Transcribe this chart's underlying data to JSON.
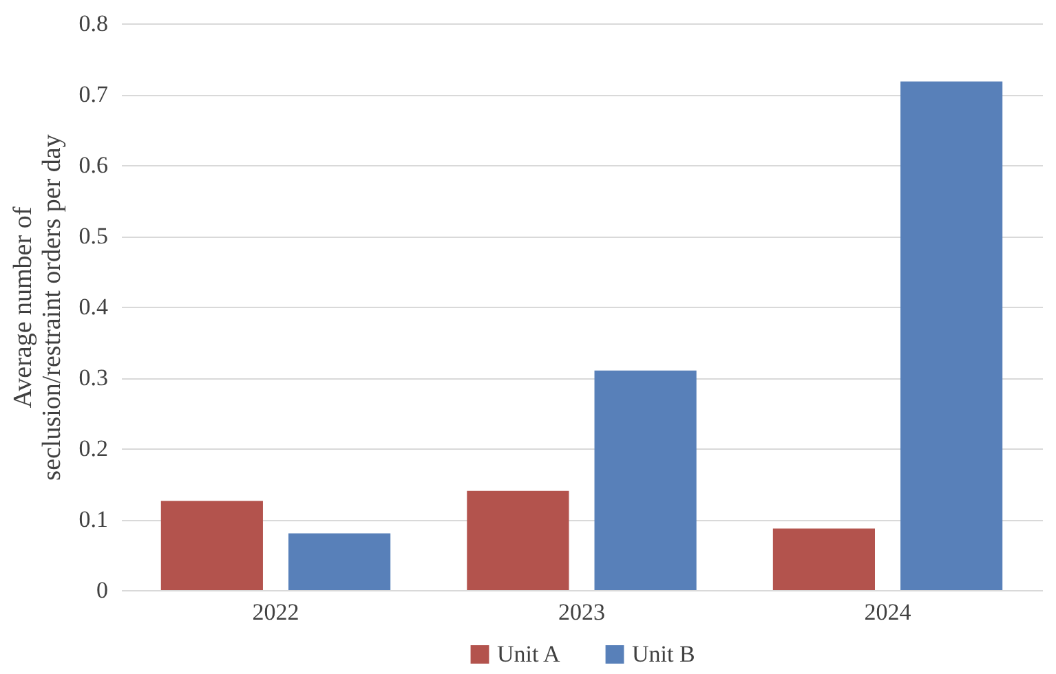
{
  "chart_data": {
    "type": "bar",
    "ylabel": "Average number of seclusion/restraint orders per day",
    "categories": [
      "2022",
      "2023",
      "2024"
    ],
    "series": [
      {
        "name": "Unit A",
        "color": "#b3534d",
        "values": [
          0.126,
          0.14,
          0.087
        ]
      },
      {
        "name": "Unit B",
        "color": "#5880b9",
        "values": [
          0.08,
          0.31,
          0.718
        ]
      }
    ],
    "ylim": [
      0,
      0.8
    ],
    "yticks": [
      0,
      0.1,
      0.2,
      0.3,
      0.4,
      0.5,
      0.6,
      0.7,
      0.8
    ],
    "grid": "y",
    "legend": "bottom"
  }
}
